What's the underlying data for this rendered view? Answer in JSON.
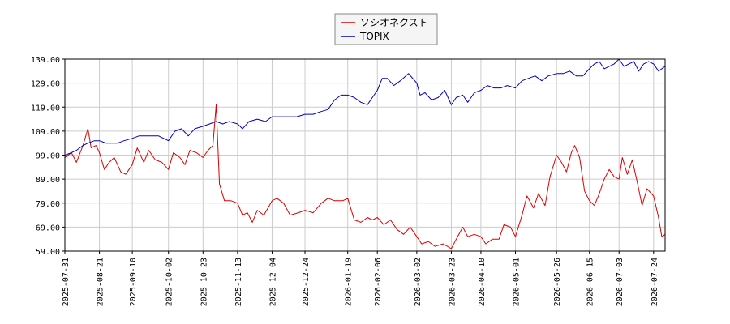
{
  "chart_data": {
    "type": "line",
    "title": "",
    "xlabel": "",
    "ylabel": "",
    "ylim": [
      59.0,
      139.0
    ],
    "yticks": [
      "59.00",
      "69.00",
      "79.00",
      "89.00",
      "99.00",
      "109.00",
      "119.00",
      "129.00",
      "139.00"
    ],
    "x_dates": [
      "2025-07-31",
      "2025-08-21",
      "2025-09-10",
      "2025-10-02",
      "2025-10-23",
      "2025-11-13",
      "2025-12-04",
      "2025-12-24",
      "2026-01-19",
      "2026-02-06",
      "2026-03-02",
      "2026-03-23",
      "2026-04-10",
      "2026-05-01",
      "2026-05-26",
      "2026-06-15",
      "2026-07-03",
      "2026-07-24"
    ],
    "grid": true,
    "legend_position": "top-center",
    "series": [
      {
        "name": "ソシオネクスト",
        "color": "#dd0000",
        "points": [
          [
            "2025-07-31",
            98
          ],
          [
            "2025-08-04",
            100
          ],
          [
            "2025-08-07",
            96
          ],
          [
            "2025-08-11",
            103
          ],
          [
            "2025-08-14",
            110
          ],
          [
            "2025-08-16",
            102
          ],
          [
            "2025-08-19",
            103
          ],
          [
            "2025-08-21",
            100
          ],
          [
            "2025-08-24",
            93
          ],
          [
            "2025-08-27",
            96
          ],
          [
            "2025-08-30",
            98
          ],
          [
            "2025-09-03",
            92
          ],
          [
            "2025-09-06",
            91
          ],
          [
            "2025-09-10",
            95
          ],
          [
            "2025-09-13",
            102
          ],
          [
            "2025-09-17",
            96
          ],
          [
            "2025-09-20",
            101
          ],
          [
            "2025-09-24",
            97
          ],
          [
            "2025-09-28",
            96
          ],
          [
            "2025-10-02",
            93
          ],
          [
            "2025-10-05",
            100
          ],
          [
            "2025-10-09",
            98
          ],
          [
            "2025-10-12",
            95
          ],
          [
            "2025-10-15",
            101
          ],
          [
            "2025-10-19",
            100
          ],
          [
            "2025-10-23",
            98
          ],
          [
            "2025-10-26",
            101
          ],
          [
            "2025-10-29",
            103
          ],
          [
            "2025-10-31",
            120
          ],
          [
            "2025-11-02",
            87
          ],
          [
            "2025-11-05",
            80
          ],
          [
            "2025-11-09",
            80
          ],
          [
            "2025-11-13",
            79
          ],
          [
            "2025-11-16",
            74
          ],
          [
            "2025-11-19",
            75
          ],
          [
            "2025-11-22",
            71
          ],
          [
            "2025-11-25",
            76
          ],
          [
            "2025-11-29",
            74
          ],
          [
            "2025-12-04",
            80
          ],
          [
            "2025-12-07",
            81
          ],
          [
            "2025-12-11",
            79
          ],
          [
            "2025-12-15",
            74
          ],
          [
            "2025-12-20",
            75
          ],
          [
            "2025-12-24",
            76
          ],
          [
            "2025-12-29",
            75
          ],
          [
            "2026-01-03",
            79
          ],
          [
            "2026-01-07",
            81
          ],
          [
            "2026-01-11",
            80
          ],
          [
            "2026-01-16",
            80
          ],
          [
            "2026-01-19",
            81
          ],
          [
            "2026-01-23",
            72
          ],
          [
            "2026-01-27",
            71
          ],
          [
            "2026-01-31",
            73
          ],
          [
            "2026-02-03",
            72
          ],
          [
            "2026-02-06",
            73
          ],
          [
            "2026-02-10",
            70
          ],
          [
            "2026-02-14",
            72
          ],
          [
            "2026-02-18",
            68
          ],
          [
            "2026-02-22",
            66
          ],
          [
            "2026-02-26",
            69
          ],
          [
            "2026-03-02",
            65
          ],
          [
            "2026-03-05",
            62
          ],
          [
            "2026-03-09",
            63
          ],
          [
            "2026-03-13",
            61
          ],
          [
            "2026-03-18",
            62
          ],
          [
            "2026-03-23",
            60
          ],
          [
            "2026-03-26",
            64
          ],
          [
            "2026-03-30",
            69
          ],
          [
            "2026-04-02",
            65
          ],
          [
            "2026-04-06",
            66
          ],
          [
            "2026-04-10",
            65
          ],
          [
            "2026-04-13",
            62
          ],
          [
            "2026-04-17",
            64
          ],
          [
            "2026-04-21",
            64
          ],
          [
            "2026-04-24",
            70
          ],
          [
            "2026-04-28",
            69
          ],
          [
            "2026-05-01",
            65
          ],
          [
            "2026-05-05",
            74
          ],
          [
            "2026-05-08",
            82
          ],
          [
            "2026-05-12",
            77
          ],
          [
            "2026-05-15",
            83
          ],
          [
            "2026-05-19",
            78
          ],
          [
            "2026-05-22",
            90
          ],
          [
            "2026-05-26",
            99
          ],
          [
            "2026-05-29",
            96
          ],
          [
            "2026-06-01",
            92
          ],
          [
            "2026-06-04",
            100
          ],
          [
            "2026-06-06",
            103
          ],
          [
            "2026-06-09",
            98
          ],
          [
            "2026-06-12",
            84
          ],
          [
            "2026-06-15",
            80
          ],
          [
            "2026-06-18",
            78
          ],
          [
            "2026-06-21",
            83
          ],
          [
            "2026-06-24",
            89
          ],
          [
            "2026-06-27",
            93
          ],
          [
            "2026-06-30",
            90
          ],
          [
            "2026-07-03",
            89
          ],
          [
            "2026-07-05",
            98
          ],
          [
            "2026-07-08",
            91
          ],
          [
            "2026-07-11",
            97
          ],
          [
            "2026-07-14",
            88
          ],
          [
            "2026-07-17",
            78
          ],
          [
            "2026-07-20",
            85
          ],
          [
            "2026-07-24",
            82
          ],
          [
            "2026-07-27",
            73
          ],
          [
            "2026-07-29",
            65
          ],
          [
            "2026-07-31",
            66
          ]
        ]
      },
      {
        "name": "TOPIX",
        "color": "#0000cc",
        "points": [
          [
            "2025-07-31",
            99
          ],
          [
            "2025-08-04",
            100
          ],
          [
            "2025-08-07",
            101
          ],
          [
            "2025-08-11",
            103
          ],
          [
            "2025-08-14",
            104
          ],
          [
            "2025-08-18",
            105
          ],
          [
            "2025-08-21",
            105
          ],
          [
            "2025-08-25",
            104
          ],
          [
            "2025-08-28",
            104
          ],
          [
            "2025-09-01",
            104
          ],
          [
            "2025-09-05",
            105
          ],
          [
            "2025-09-10",
            106
          ],
          [
            "2025-09-14",
            107
          ],
          [
            "2025-09-18",
            107
          ],
          [
            "2025-09-22",
            107
          ],
          [
            "2025-09-26",
            107
          ],
          [
            "2025-10-02",
            105
          ],
          [
            "2025-10-06",
            109
          ],
          [
            "2025-10-10",
            110
          ],
          [
            "2025-10-14",
            107
          ],
          [
            "2025-10-18",
            110
          ],
          [
            "2025-10-23",
            111
          ],
          [
            "2025-10-27",
            112
          ],
          [
            "2025-10-31",
            113
          ],
          [
            "2025-11-04",
            112
          ],
          [
            "2025-11-08",
            113
          ],
          [
            "2025-11-13",
            112
          ],
          [
            "2025-11-16",
            110
          ],
          [
            "2025-11-20",
            113
          ],
          [
            "2025-11-25",
            114
          ],
          [
            "2025-11-30",
            113
          ],
          [
            "2025-12-04",
            115
          ],
          [
            "2025-12-09",
            115
          ],
          [
            "2025-12-14",
            115
          ],
          [
            "2025-12-19",
            115
          ],
          [
            "2025-12-24",
            116
          ],
          [
            "2025-12-29",
            116
          ],
          [
            "2026-01-02",
            117
          ],
          [
            "2026-01-07",
            118
          ],
          [
            "2026-01-11",
            122
          ],
          [
            "2026-01-15",
            124
          ],
          [
            "2026-01-19",
            124
          ],
          [
            "2026-01-23",
            123
          ],
          [
            "2026-01-27",
            121
          ],
          [
            "2026-01-31",
            120
          ],
          [
            "2026-02-03",
            123
          ],
          [
            "2026-02-06",
            126
          ],
          [
            "2026-02-09",
            131
          ],
          [
            "2026-02-12",
            131
          ],
          [
            "2026-02-16",
            128
          ],
          [
            "2026-02-20",
            130
          ],
          [
            "2026-02-25",
            133
          ],
          [
            "2026-03-02",
            129
          ],
          [
            "2026-03-04",
            124
          ],
          [
            "2026-03-07",
            125
          ],
          [
            "2026-03-11",
            122
          ],
          [
            "2026-03-15",
            123
          ],
          [
            "2026-03-19",
            126
          ],
          [
            "2026-03-23",
            120
          ],
          [
            "2026-03-26",
            123
          ],
          [
            "2026-03-30",
            124
          ],
          [
            "2026-04-02",
            121
          ],
          [
            "2026-04-06",
            125
          ],
          [
            "2026-04-10",
            126
          ],
          [
            "2026-04-14",
            128
          ],
          [
            "2026-04-18",
            127
          ],
          [
            "2026-04-22",
            127
          ],
          [
            "2026-04-26",
            128
          ],
          [
            "2026-05-01",
            127
          ],
          [
            "2026-05-05",
            130
          ],
          [
            "2026-05-09",
            131
          ],
          [
            "2026-05-13",
            132
          ],
          [
            "2026-05-17",
            130
          ],
          [
            "2026-05-21",
            132
          ],
          [
            "2026-05-26",
            133
          ],
          [
            "2026-05-30",
            133
          ],
          [
            "2026-06-03",
            134
          ],
          [
            "2026-06-07",
            132
          ],
          [
            "2026-06-11",
            132
          ],
          [
            "2026-06-15",
            135
          ],
          [
            "2026-06-18",
            137
          ],
          [
            "2026-06-21",
            138
          ],
          [
            "2026-06-24",
            135
          ],
          [
            "2026-06-27",
            136
          ],
          [
            "2026-06-30",
            137
          ],
          [
            "2026-07-03",
            139
          ],
          [
            "2026-07-06",
            136
          ],
          [
            "2026-07-09",
            137
          ],
          [
            "2026-07-12",
            138
          ],
          [
            "2026-07-15",
            134
          ],
          [
            "2026-07-18",
            137
          ],
          [
            "2026-07-21",
            138
          ],
          [
            "2026-07-24",
            137
          ],
          [
            "2026-07-27",
            134
          ],
          [
            "2026-07-31",
            136
          ]
        ]
      }
    ]
  }
}
